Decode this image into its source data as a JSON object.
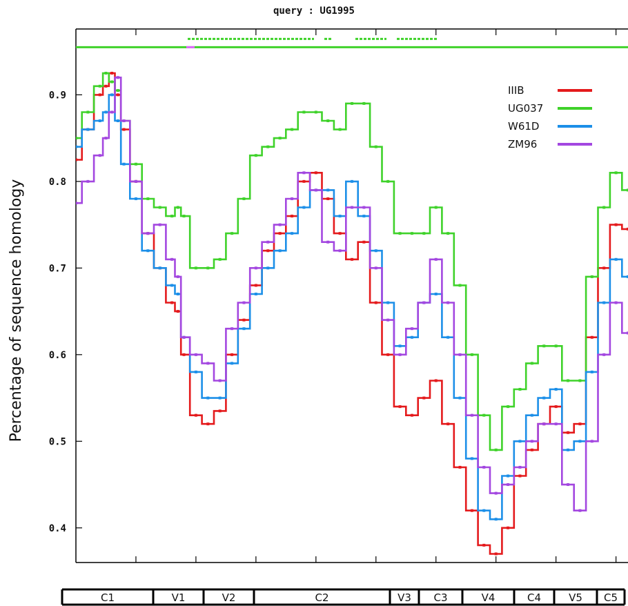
{
  "chart_data": {
    "type": "line",
    "title": "query : UG1995",
    "xlabel": "",
    "ylabel": "Percentage of sequence homology",
    "ylim": [
      0.36,
      0.976
    ],
    "grid": false,
    "legend_position": "top-right",
    "yticks": [
      {
        "value": 0.9,
        "label": "0.9"
      },
      {
        "value": 0.8,
        "label": "0.8"
      },
      {
        "value": 0.7,
        "label": "0.7"
      },
      {
        "value": 0.6,
        "label": "0.6"
      },
      {
        "value": 0.5,
        "label": "0.5"
      },
      {
        "value": 0.4,
        "label": "0.4"
      }
    ],
    "x_minor_ticks": [
      1,
      2,
      3,
      4,
      5,
      6,
      7,
      8,
      9
    ],
    "x": [
      0,
      0.2,
      0.4,
      0.5,
      0.6,
      0.7,
      0.8,
      1.0,
      1.2,
      1.4,
      1.6,
      1.7,
      1.8,
      2.0,
      2.2,
      2.4,
      2.6,
      2.8,
      3.0,
      3.2,
      3.4,
      3.6,
      3.8,
      4.0,
      4.2,
      4.4,
      4.6,
      4.8,
      5.0,
      5.2,
      5.4,
      5.6,
      5.8,
      6.0,
      6.2,
      6.4,
      6.6,
      6.8,
      7.0,
      7.2,
      7.4,
      7.6,
      7.8,
      8.0,
      8.2,
      8.4,
      8.6,
      8.8,
      9.0,
      9.2
    ],
    "series": [
      {
        "name": "IIIB",
        "color": "#e41a1c",
        "values": [
          0.825,
          0.86,
          0.9,
          0.91,
          0.925,
          0.9,
          0.86,
          0.8,
          0.74,
          0.7,
          0.66,
          0.65,
          0.6,
          0.53,
          0.52,
          0.535,
          0.6,
          0.64,
          0.68,
          0.72,
          0.74,
          0.76,
          0.8,
          0.81,
          0.78,
          0.74,
          0.71,
          0.73,
          0.66,
          0.6,
          0.54,
          0.53,
          0.55,
          0.57,
          0.52,
          0.47,
          0.42,
          0.38,
          0.37,
          0.4,
          0.46,
          0.49,
          0.52,
          0.54,
          0.51,
          0.52,
          0.62,
          0.7,
          0.75,
          0.745
        ]
      },
      {
        "name": "UG037",
        "color": "#3fd22a",
        "values": [
          0.85,
          0.88,
          0.91,
          0.925,
          0.915,
          0.905,
          0.87,
          0.82,
          0.78,
          0.77,
          0.76,
          0.77,
          0.76,
          0.7,
          0.7,
          0.71,
          0.74,
          0.78,
          0.83,
          0.84,
          0.85,
          0.86,
          0.88,
          0.88,
          0.87,
          0.86,
          0.89,
          0.89,
          0.84,
          0.8,
          0.74,
          0.74,
          0.74,
          0.77,
          0.74,
          0.68,
          0.6,
          0.53,
          0.49,
          0.54,
          0.56,
          0.59,
          0.61,
          0.61,
          0.57,
          0.57,
          0.69,
          0.77,
          0.81,
          0.79
        ]
      },
      {
        "name": "W61D",
        "color": "#1c8fe8",
        "values": [
          0.84,
          0.86,
          0.87,
          0.88,
          0.9,
          0.87,
          0.82,
          0.78,
          0.72,
          0.7,
          0.68,
          0.67,
          0.62,
          0.58,
          0.55,
          0.55,
          0.59,
          0.63,
          0.67,
          0.7,
          0.72,
          0.74,
          0.77,
          0.79,
          0.79,
          0.76,
          0.8,
          0.76,
          0.72,
          0.66,
          0.61,
          0.62,
          0.66,
          0.67,
          0.62,
          0.55,
          0.48,
          0.42,
          0.41,
          0.46,
          0.5,
          0.53,
          0.55,
          0.56,
          0.49,
          0.5,
          0.58,
          0.66,
          0.71,
          0.69
        ]
      },
      {
        "name": "ZM96",
        "color": "#a347e0",
        "values": [
          0.775,
          0.8,
          0.83,
          0.85,
          0.88,
          0.92,
          0.87,
          0.8,
          0.74,
          0.75,
          0.71,
          0.69,
          0.62,
          0.6,
          0.59,
          0.57,
          0.63,
          0.66,
          0.7,
          0.73,
          0.75,
          0.78,
          0.81,
          0.79,
          0.73,
          0.72,
          0.77,
          0.77,
          0.7,
          0.64,
          0.6,
          0.63,
          0.66,
          0.71,
          0.66,
          0.6,
          0.53,
          0.47,
          0.44,
          0.45,
          0.47,
          0.5,
          0.52,
          0.52,
          0.45,
          0.42,
          0.5,
          0.6,
          0.66,
          0.625
        ]
      }
    ],
    "reference_line": {
      "color": "#3fd22a",
      "value": 0.955
    },
    "regions": [
      {
        "label": "C1"
      },
      {
        "label": "V1"
      },
      {
        "label": "V2"
      },
      {
        "label": "C2"
      },
      {
        "label": "V3"
      },
      {
        "label": "C3"
      },
      {
        "label": "V4"
      },
      {
        "label": "C4"
      },
      {
        "label": "V5"
      },
      {
        "label": "C5"
      }
    ]
  }
}
